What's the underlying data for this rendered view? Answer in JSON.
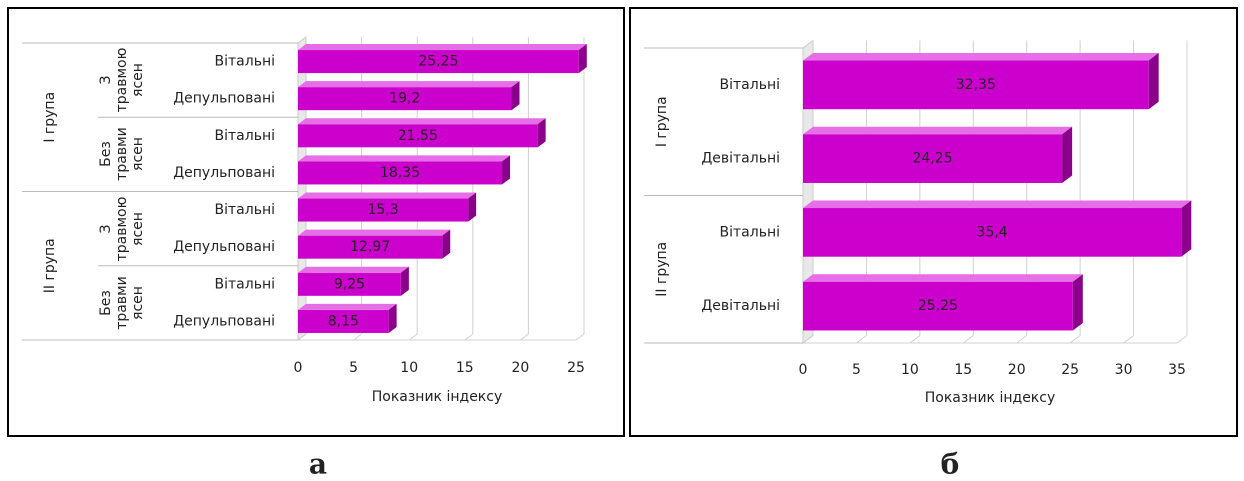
{
  "chart_data": [
    {
      "type": "bar",
      "orientation": "horizontal",
      "panel_label": "а",
      "x_label": "Показник індексу",
      "color": "#cc00cc",
      "xlim": [
        0,
        25
      ],
      "xticks": [
        0,
        5,
        10,
        15,
        20,
        25
      ],
      "grid": true,
      "groups": [
        {
          "label": "I група",
          "subgroups": [
            {
              "label": "З травмою ясен",
              "categories": [
                "Вітальні",
                "Депульповані"
              ],
              "values": [
                25.25,
                19.2
              ],
              "value_labels": [
                "25,25",
                "19,2"
              ]
            },
            {
              "label": "Без травми ясен",
              "categories": [
                "Вітальні",
                "Депульповані"
              ],
              "values": [
                21.55,
                18.35
              ],
              "value_labels": [
                "21,55",
                "18,35"
              ]
            }
          ]
        },
        {
          "label": "II група",
          "subgroups": [
            {
              "label": "З травмою ясен",
              "categories": [
                "Вітальні",
                "Депульповані"
              ],
              "values": [
                15.3,
                12.97
              ],
              "value_labels": [
                "15,3",
                "12,97"
              ]
            },
            {
              "label": "Без травми ясен",
              "categories": [
                "Вітальні",
                "Депульповані"
              ],
              "values": [
                9.25,
                8.15
              ],
              "value_labels": [
                "9,25",
                "8,15"
              ]
            }
          ]
        }
      ]
    },
    {
      "type": "bar",
      "orientation": "horizontal",
      "panel_label": "б",
      "x_label": "Показник індексу",
      "color": "#cc00cc",
      "xlim": [
        0,
        35
      ],
      "xticks": [
        0,
        5,
        10,
        15,
        20,
        25,
        30,
        35
      ],
      "grid": true,
      "groups": [
        {
          "label": "I група",
          "categories": [
            "Вітальні",
            "Девітальні"
          ],
          "values": [
            32.35,
            24.25
          ],
          "value_labels": [
            "32,35",
            "24,25"
          ]
        },
        {
          "label": "II група",
          "categories": [
            "Вітальні",
            "Девітальні"
          ],
          "values": [
            35.4,
            25.25
          ],
          "value_labels": [
            "35,4",
            "25,25"
          ]
        }
      ]
    }
  ]
}
